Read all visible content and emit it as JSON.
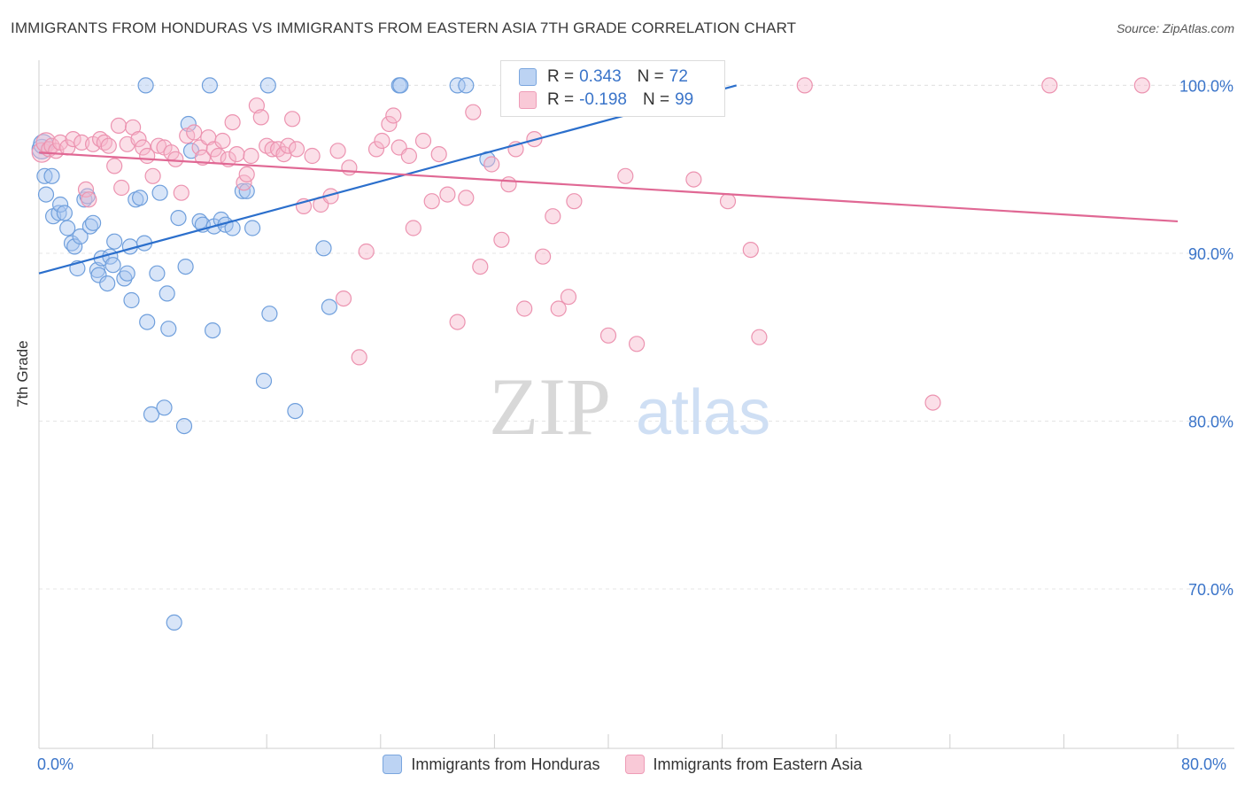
{
  "header": {
    "title": "IMMIGRANTS FROM HONDURAS VS IMMIGRANTS FROM EASTERN ASIA 7TH GRADE CORRELATION CHART",
    "source": "Source: ZipAtlas.com"
  },
  "watermark": {
    "zip": "ZIP",
    "atlas": "atlas"
  },
  "legend": {
    "rows": [
      {
        "r_label": "R =",
        "r_value": "0.343",
        "n_label": "N =",
        "n_value": "72"
      },
      {
        "r_label": "R =",
        "r_value": "-0.198",
        "n_label": "N =",
        "n_value": "99"
      }
    ]
  },
  "colors": {
    "blue_fill": "#a9c6ef",
    "blue_stroke": "#6f9fdc",
    "blue_line": "#2b6fcc",
    "pink_fill": "#f6b8cb",
    "pink_stroke": "#ec93b0",
    "pink_line": "#e06894",
    "tick_label": "#3a74c9",
    "grid": "#e4e4e4"
  },
  "chart_data": {
    "type": "scatter",
    "title": "IMMIGRANTS FROM HONDURAS VS IMMIGRANTS FROM EASTERN ASIA 7TH GRADE CORRELATION CHART",
    "xlabel": "",
    "ylabel": "7th Grade",
    "xlim": [
      0,
      80
    ],
    "ylim": [
      60.5,
      101.5
    ],
    "x_tick_labels": [
      "0.0%",
      "80.0%"
    ],
    "y_ticks": [
      70,
      80,
      90,
      100
    ],
    "y_tick_labels": [
      "70.0%",
      "80.0%",
      "90.0%",
      "100.0%"
    ],
    "grid": "horizontal dashed",
    "legend_placement": "bottom-center",
    "series": [
      {
        "name": "Immigrants from Honduras",
        "color": "blue",
        "trend": {
          "x": [
            0,
            49
          ],
          "y": [
            88.8,
            100.0
          ]
        },
        "points": [
          [
            0.2,
            96.2
          ],
          [
            0.3,
            96.5
          ],
          [
            0.4,
            94.6
          ],
          [
            0.5,
            93.5
          ],
          [
            0.9,
            94.6
          ],
          [
            1.0,
            92.2
          ],
          [
            1.4,
            92.4
          ],
          [
            1.5,
            92.9
          ],
          [
            1.8,
            92.4
          ],
          [
            2.0,
            91.5
          ],
          [
            2.3,
            90.6
          ],
          [
            2.5,
            90.4
          ],
          [
            2.7,
            89.1
          ],
          [
            2.9,
            91.0
          ],
          [
            3.2,
            93.2
          ],
          [
            3.4,
            93.4
          ],
          [
            3.6,
            91.6
          ],
          [
            3.8,
            91.8
          ],
          [
            4.1,
            89.0
          ],
          [
            4.2,
            88.7
          ],
          [
            4.4,
            89.7
          ],
          [
            4.8,
            88.2
          ],
          [
            5.0,
            89.8
          ],
          [
            5.2,
            89.3
          ],
          [
            5.3,
            90.7
          ],
          [
            6.0,
            88.5
          ],
          [
            6.2,
            88.8
          ],
          [
            6.4,
            90.4
          ],
          [
            6.5,
            87.2
          ],
          [
            6.8,
            93.2
          ],
          [
            7.1,
            93.3
          ],
          [
            7.4,
            90.6
          ],
          [
            7.6,
            85.9
          ],
          [
            7.9,
            80.4
          ],
          [
            8.3,
            88.8
          ],
          [
            8.5,
            93.6
          ],
          [
            8.8,
            80.8
          ],
          [
            9.0,
            87.6
          ],
          [
            9.1,
            85.5
          ],
          [
            9.5,
            68.0
          ],
          [
            9.8,
            92.1
          ],
          [
            10.2,
            79.7
          ],
          [
            10.3,
            89.2
          ],
          [
            10.5,
            97.7
          ],
          [
            10.7,
            96.1
          ],
          [
            11.3,
            91.9
          ],
          [
            11.5,
            91.7
          ],
          [
            12.2,
            85.4
          ],
          [
            12.3,
            91.6
          ],
          [
            12.8,
            92.0
          ],
          [
            13.1,
            91.7
          ],
          [
            13.6,
            91.5
          ],
          [
            14.3,
            93.7
          ],
          [
            14.6,
            93.7
          ],
          [
            15.0,
            91.5
          ],
          [
            15.8,
            82.4
          ],
          [
            16.2,
            86.4
          ],
          [
            16.1,
            100.0
          ],
          [
            18.0,
            80.6
          ],
          [
            20.0,
            90.3
          ],
          [
            20.4,
            86.8
          ],
          [
            25.3,
            100.0
          ],
          [
            25.4,
            100.0
          ],
          [
            29.4,
            100.0
          ],
          [
            30.0,
            100.0
          ],
          [
            31.5,
            95.6
          ],
          [
            34.0,
            100.0
          ],
          [
            34.5,
            100.0
          ],
          [
            46.0,
            100.0
          ],
          [
            47.0,
            100.0
          ],
          [
            12.0,
            100.0
          ],
          [
            7.5,
            100.0
          ]
        ]
      },
      {
        "name": "Immigrants from Eastern Asia",
        "color": "pink",
        "trend": {
          "x": [
            0,
            80
          ],
          "y": [
            96.0,
            91.9
          ]
        },
        "points": [
          [
            0.2,
            96.0
          ],
          [
            0.5,
            96.6
          ],
          [
            0.7,
            96.2
          ],
          [
            0.9,
            96.4
          ],
          [
            1.2,
            96.1
          ],
          [
            1.5,
            96.6
          ],
          [
            2.0,
            96.3
          ],
          [
            2.4,
            96.8
          ],
          [
            3.0,
            96.6
          ],
          [
            3.3,
            93.8
          ],
          [
            3.5,
            93.2
          ],
          [
            3.8,
            96.5
          ],
          [
            4.3,
            96.8
          ],
          [
            4.6,
            96.6
          ],
          [
            4.9,
            96.4
          ],
          [
            5.3,
            95.2
          ],
          [
            5.6,
            97.6
          ],
          [
            5.8,
            93.9
          ],
          [
            6.2,
            96.5
          ],
          [
            6.6,
            97.5
          ],
          [
            7.0,
            96.8
          ],
          [
            7.3,
            96.3
          ],
          [
            7.6,
            95.8
          ],
          [
            8.0,
            94.6
          ],
          [
            8.4,
            96.4
          ],
          [
            8.8,
            96.3
          ],
          [
            9.3,
            96.0
          ],
          [
            9.6,
            95.6
          ],
          [
            10.0,
            93.6
          ],
          [
            10.4,
            97.0
          ],
          [
            10.9,
            97.2
          ],
          [
            11.3,
            96.3
          ],
          [
            11.5,
            95.7
          ],
          [
            11.9,
            96.9
          ],
          [
            12.3,
            96.2
          ],
          [
            12.6,
            95.8
          ],
          [
            12.9,
            96.7
          ],
          [
            13.3,
            95.6
          ],
          [
            13.6,
            97.8
          ],
          [
            13.9,
            95.9
          ],
          [
            14.4,
            94.2
          ],
          [
            14.6,
            94.7
          ],
          [
            14.9,
            95.8
          ],
          [
            15.3,
            98.8
          ],
          [
            15.6,
            98.1
          ],
          [
            16.0,
            96.4
          ],
          [
            16.4,
            96.2
          ],
          [
            16.8,
            96.2
          ],
          [
            17.2,
            95.9
          ],
          [
            17.5,
            96.4
          ],
          [
            17.8,
            98.0
          ],
          [
            18.1,
            96.2
          ],
          [
            18.6,
            92.8
          ],
          [
            19.2,
            95.8
          ],
          [
            19.8,
            92.9
          ],
          [
            20.5,
            93.4
          ],
          [
            21.0,
            96.1
          ],
          [
            21.4,
            87.3
          ],
          [
            21.8,
            95.1
          ],
          [
            22.5,
            83.8
          ],
          [
            23.0,
            90.1
          ],
          [
            23.7,
            96.2
          ],
          [
            24.1,
            96.7
          ],
          [
            24.6,
            97.7
          ],
          [
            24.9,
            98.2
          ],
          [
            25.3,
            96.3
          ],
          [
            26.0,
            95.8
          ],
          [
            26.3,
            91.5
          ],
          [
            27.0,
            96.7
          ],
          [
            27.6,
            93.1
          ],
          [
            28.1,
            95.9
          ],
          [
            28.7,
            93.5
          ],
          [
            29.4,
            85.9
          ],
          [
            30.0,
            93.3
          ],
          [
            30.5,
            98.4
          ],
          [
            31.0,
            89.2
          ],
          [
            31.8,
            95.3
          ],
          [
            32.5,
            90.8
          ],
          [
            33.0,
            94.1
          ],
          [
            33.5,
            96.2
          ],
          [
            34.1,
            86.7
          ],
          [
            34.8,
            96.8
          ],
          [
            35.4,
            89.8
          ],
          [
            36.1,
            92.2
          ],
          [
            36.5,
            86.7
          ],
          [
            37.2,
            87.4
          ],
          [
            37.6,
            93.1
          ],
          [
            40.0,
            85.1
          ],
          [
            41.2,
            94.6
          ],
          [
            42.0,
            84.6
          ],
          [
            46.0,
            94.4
          ],
          [
            46.3,
            100.0
          ],
          [
            48.4,
            93.1
          ],
          [
            50.0,
            90.2
          ],
          [
            50.6,
            85.0
          ],
          [
            53.8,
            100.0
          ],
          [
            62.8,
            81.1
          ],
          [
            71.0,
            100.0
          ],
          [
            77.5,
            100.0
          ]
        ]
      }
    ]
  }
}
